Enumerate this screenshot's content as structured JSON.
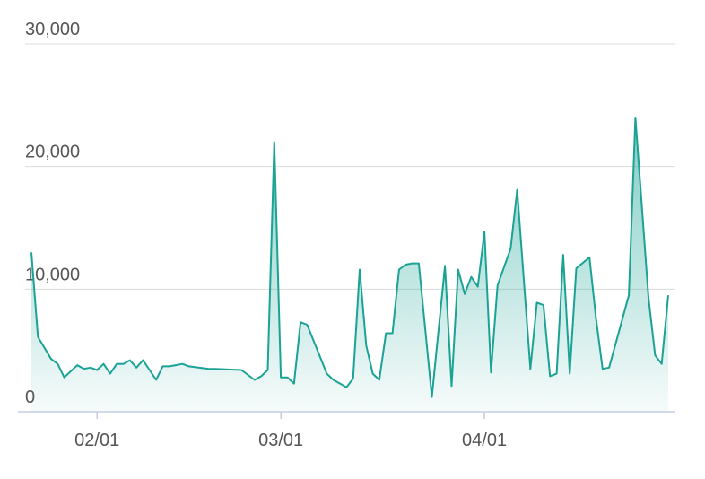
{
  "chart_data": {
    "type": "area",
    "x": [
      "01/22",
      "01/23",
      "01/25",
      "01/26",
      "01/27",
      "01/28",
      "01/29",
      "01/30",
      "01/31",
      "02/01",
      "02/02",
      "02/03",
      "02/04",
      "02/05",
      "02/06",
      "02/07",
      "02/08",
      "02/09",
      "02/10",
      "02/11",
      "02/12",
      "02/13",
      "02/14",
      "02/15",
      "02/18",
      "02/19",
      "02/23",
      "02/25",
      "02/26",
      "02/27",
      "02/28",
      "03/01",
      "03/02",
      "03/03",
      "03/04",
      "03/05",
      "03/08",
      "03/09",
      "03/11",
      "03/12",
      "03/13",
      "03/14",
      "03/15",
      "03/16",
      "03/17",
      "03/18",
      "03/19",
      "03/20",
      "03/21",
      "03/22",
      "03/24",
      "03/26",
      "03/27",
      "03/28",
      "03/29",
      "03/30",
      "03/31",
      "04/01",
      "04/02",
      "04/03",
      "04/05",
      "04/06",
      "04/08",
      "04/09",
      "04/10",
      "04/11",
      "04/12",
      "04/13",
      "04/14",
      "04/15",
      "04/17",
      "04/18",
      "04/19",
      "04/20",
      "04/23",
      "04/24",
      "04/26",
      "04/27",
      "04/28",
      "04/29"
    ],
    "series": [
      {
        "color": "#1aa394",
        "values": [
          13000,
          6100,
          4300,
          3900,
          2800,
          3300,
          3800,
          3500,
          3600,
          3400,
          3900,
          3100,
          3900,
          3900,
          4200,
          3600,
          4200,
          3400,
          2600,
          3700,
          3700,
          3800,
          3900,
          3700,
          3500,
          3500,
          3400,
          2600,
          2900,
          3400,
          22000,
          2800,
          2800,
          2300,
          7300,
          7100,
          3100,
          2600,
          2000,
          2700,
          11600,
          5400,
          3100,
          2600,
          6400,
          6400,
          11600,
          12000,
          12100,
          12100,
          1200,
          11900,
          2100,
          11600,
          9600,
          11000,
          10200,
          14700,
          3200,
          10300,
          13300,
          18100,
          3500,
          8900,
          8700,
          2900,
          3100,
          12800,
          3100,
          11700,
          12600,
          7600,
          3500,
          3600,
          9500,
          24000,
          9300,
          4600,
          3900,
          9500
        ]
      }
    ],
    "xlim": [
      "01/22",
      "04/29"
    ],
    "xticks": [
      "02/01",
      "03/01",
      "04/01"
    ],
    "ylim": [
      0,
      30000
    ],
    "yticks": [
      0,
      {
        "value": 10000,
        "label": "10,000"
      },
      {
        "value": 20000,
        "label": "20,000"
      },
      {
        "value": 30000,
        "label": "30,000"
      }
    ],
    "grid": true
  }
}
